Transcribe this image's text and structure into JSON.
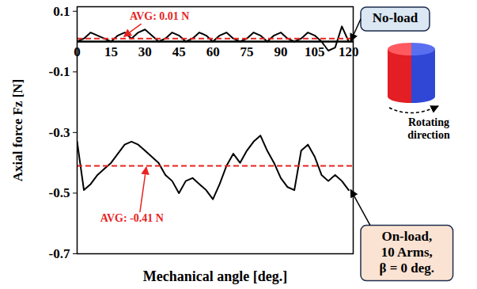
{
  "chart_data": {
    "type": "line",
    "x_label": "Mechanical angle [deg.]",
    "y_label": "Axial force Fz [N]",
    "x": [
      0,
      3,
      6,
      9,
      12,
      15,
      18,
      21,
      24,
      27,
      30,
      33,
      36,
      39,
      42,
      45,
      48,
      51,
      54,
      57,
      60,
      63,
      66,
      69,
      72,
      75,
      78,
      81,
      84,
      87,
      90,
      93,
      96,
      99,
      102,
      105,
      108,
      111,
      114,
      117,
      120
    ],
    "series": [
      {
        "name": "No-load",
        "color": "#000000",
        "line_style": "solid",
        "values": [
          0.0,
          0.01,
          0.03,
          0.02,
          0.01,
          0.0,
          0.02,
          0.03,
          0.01,
          0.03,
          0.04,
          0.02,
          0.0,
          0.01,
          0.03,
          0.02,
          0.0,
          0.01,
          0.03,
          0.02,
          0.0,
          0.02,
          0.03,
          0.01,
          0.0,
          0.01,
          0.03,
          0.02,
          0.0,
          0.02,
          0.03,
          0.01,
          0.0,
          0.01,
          0.03,
          0.02,
          0.0,
          -0.03,
          -0.02,
          0.05,
          0.0
        ],
        "average": 0.01,
        "average_label": "AVG: 0.01 N"
      },
      {
        "name": "On-load,\n10 Arms,\nβ = 0 deg.",
        "color": "#000000",
        "line_style": "solid",
        "values": [
          -0.33,
          -0.49,
          -0.47,
          -0.44,
          -0.42,
          -0.4,
          -0.37,
          -0.34,
          -0.33,
          -0.34,
          -0.36,
          -0.38,
          -0.4,
          -0.44,
          -0.46,
          -0.5,
          -0.46,
          -0.45,
          -0.47,
          -0.49,
          -0.52,
          -0.47,
          -0.41,
          -0.37,
          -0.4,
          -0.36,
          -0.33,
          -0.31,
          -0.36,
          -0.4,
          -0.45,
          -0.48,
          -0.49,
          -0.36,
          -0.34,
          -0.38,
          -0.44,
          -0.46,
          -0.44,
          -0.46,
          -0.49
        ],
        "average": -0.41,
        "average_label": "AVG: -0.41 N"
      }
    ],
    "xlim": [
      0,
      122
    ],
    "ylim": [
      -0.7,
      0.115
    ],
    "xticks": [
      0,
      15,
      30,
      45,
      60,
      75,
      90,
      105,
      120
    ],
    "yticks": [
      0.1,
      -0.1,
      -0.3,
      -0.5,
      -0.7
    ],
    "baseline": 0,
    "grid": false,
    "legend": "right",
    "annotations": [
      {
        "text": "Rotating\ndirection"
      }
    ]
  }
}
